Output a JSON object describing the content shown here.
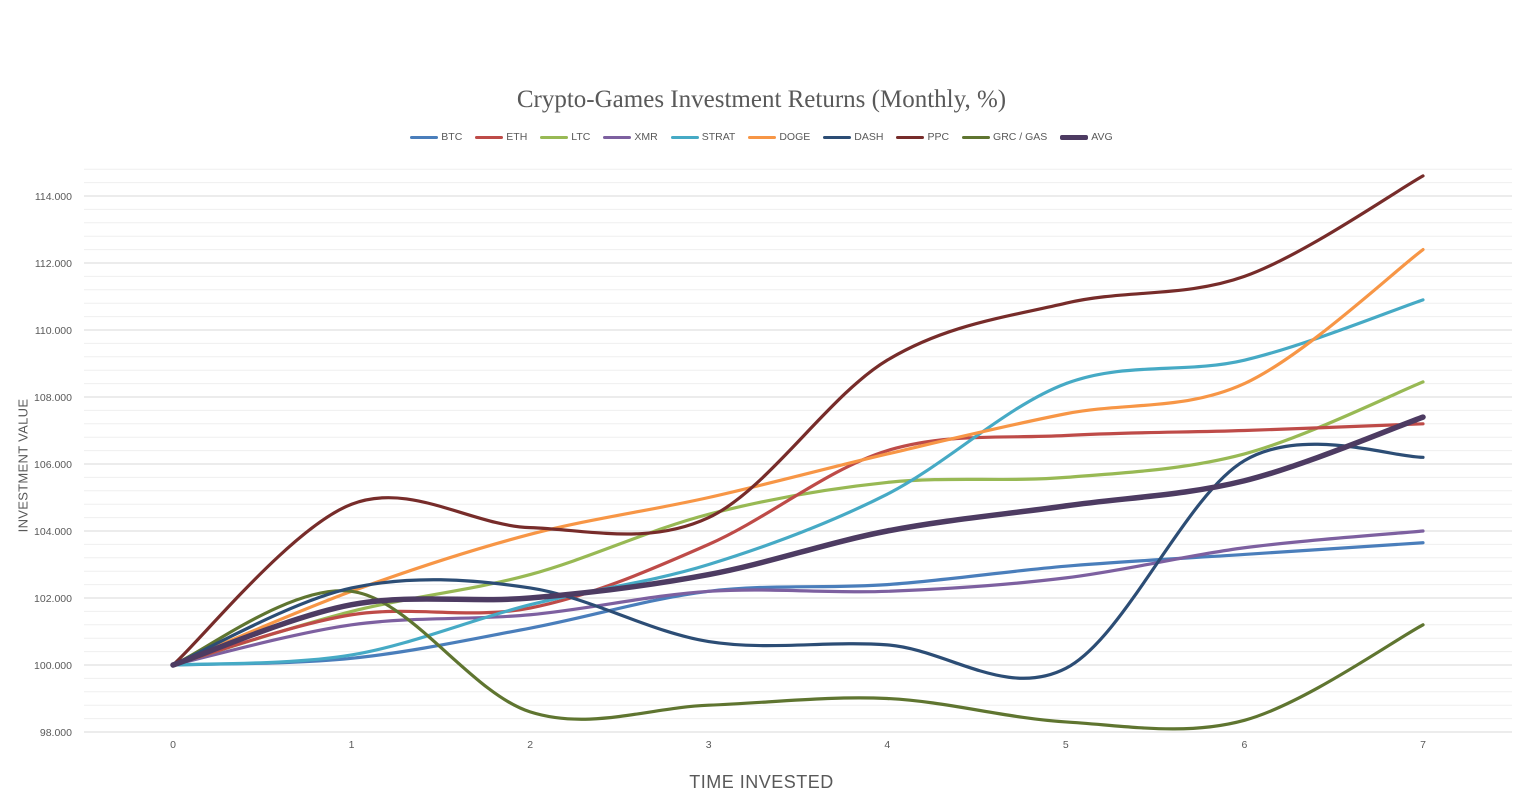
{
  "chart_data": {
    "type": "line",
    "title": "Crypto-Games Investment Returns (Monthly, %)",
    "xlabel": "TIME INVESTED",
    "ylabel": "INVESTMENT VALUE",
    "x": [
      0,
      1,
      2,
      3,
      4,
      5,
      6,
      7
    ],
    "x_tick_labels": [
      "0",
      "1",
      "2",
      "3",
      "4",
      "5",
      "6",
      "7"
    ],
    "ylim": [
      98,
      114.8
    ],
    "y_ticks": [
      98,
      100,
      102,
      104,
      106,
      108,
      110,
      112,
      114
    ],
    "y_tick_labels": [
      "98.000",
      "100.000",
      "102.000",
      "104.000",
      "106.000",
      "108.000",
      "110.000",
      "112.000",
      "114.000"
    ],
    "grid": "horizontal major and minor",
    "legend_position": "top",
    "smooth": true,
    "series": [
      {
        "name": "BTC",
        "color": "#4a7ebb",
        "values": [
          100.0,
          100.2,
          101.1,
          102.2,
          102.4,
          102.95,
          103.3,
          103.65
        ]
      },
      {
        "name": "ETH",
        "color": "#be4b48",
        "values": [
          100.0,
          101.5,
          101.7,
          103.6,
          106.4,
          106.85,
          107.0,
          107.2
        ]
      },
      {
        "name": "LTC",
        "color": "#98b954",
        "values": [
          100.0,
          101.6,
          102.7,
          104.5,
          105.45,
          105.6,
          106.3,
          108.45
        ]
      },
      {
        "name": "XMR",
        "color": "#7d60a0",
        "values": [
          100.0,
          101.2,
          101.5,
          102.2,
          102.2,
          102.6,
          103.5,
          104.0
        ]
      },
      {
        "name": "STRAT",
        "color": "#46aac5",
        "values": [
          100.0,
          100.3,
          101.8,
          103.0,
          105.1,
          108.4,
          109.1,
          110.9
        ]
      },
      {
        "name": "DOGE",
        "color": "#f79646",
        "values": [
          100.0,
          102.2,
          103.9,
          105.0,
          106.3,
          107.5,
          108.4,
          112.4
        ]
      },
      {
        "name": "DASH",
        "color": "#2c4d75",
        "values": [
          100.0,
          102.3,
          102.3,
          100.7,
          100.6,
          99.9,
          106.1,
          106.2
        ]
      },
      {
        "name": "PPC",
        "color": "#772c2a",
        "values": [
          100.0,
          104.8,
          104.1,
          104.4,
          109.1,
          110.8,
          111.6,
          114.6
        ]
      },
      {
        "name": "GRC / GAS",
        "color": "#5f7530",
        "values": [
          100.0,
          102.2,
          98.6,
          98.8,
          99.0,
          98.3,
          98.35,
          101.2
        ]
      },
      {
        "name": "AVG",
        "color": "#4d3b62",
        "values": [
          100.0,
          101.8,
          102.0,
          102.7,
          104.0,
          104.75,
          105.5,
          107.4
        ],
        "thick": true
      }
    ]
  }
}
